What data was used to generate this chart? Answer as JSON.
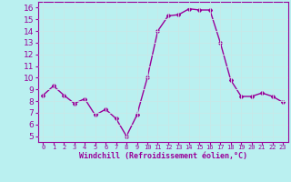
{
  "x": [
    0,
    1,
    2,
    3,
    4,
    5,
    6,
    7,
    8,
    9,
    10,
    11,
    12,
    13,
    14,
    15,
    16,
    17,
    18,
    19,
    20,
    21,
    22,
    23
  ],
  "y": [
    8.5,
    9.3,
    8.5,
    7.8,
    8.2,
    6.8,
    7.3,
    6.5,
    5.0,
    6.8,
    10.0,
    14.0,
    15.3,
    15.4,
    15.9,
    15.8,
    15.8,
    13.0,
    9.8,
    8.4,
    8.4,
    8.7,
    8.4,
    7.9
  ],
  "line_color": "#990099",
  "marker": "D",
  "marker_size": 2,
  "bg_color": "#baf0f0",
  "grid_color": "#c8e8e8",
  "xlabel": "Windchill (Refroidissement éolien,°C)",
  "xlabel_color": "#990099",
  "tick_color": "#990099",
  "ylim": [
    4.5,
    16.5
  ],
  "yticks": [
    5,
    6,
    7,
    8,
    9,
    10,
    11,
    12,
    13,
    14,
    15,
    16
  ],
  "xticks": [
    0,
    1,
    2,
    3,
    4,
    5,
    6,
    7,
    8,
    9,
    10,
    11,
    12,
    13,
    14,
    15,
    16,
    17,
    18,
    19,
    20,
    21,
    22,
    23
  ],
  "spine_color": "#990099",
  "line_width": 1.0
}
